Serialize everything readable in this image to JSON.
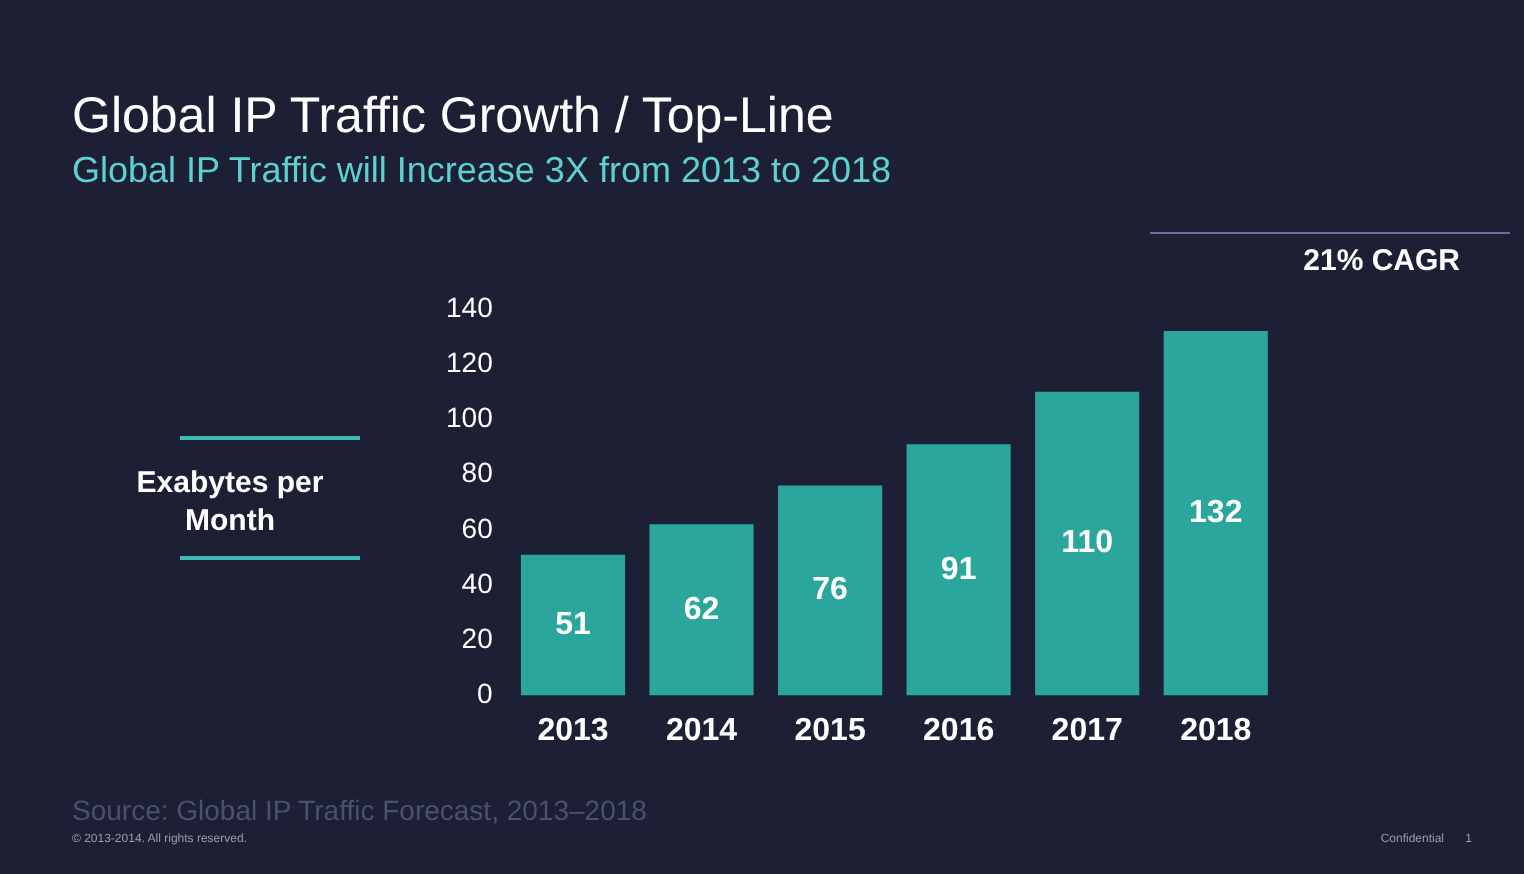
{
  "chart_data": {
    "type": "bar",
    "title": "Global IP Traffic Growth / Top-Line",
    "subtitle": "Global IP Traffic will Increase 3X from 2013 to 2018",
    "ylabel": "Exabytes per Month",
    "categories": [
      "2013",
      "2014",
      "2015",
      "2016",
      "2017",
      "2018"
    ],
    "values": [
      51,
      62,
      76,
      91,
      110,
      132
    ],
    "color": "#2aa69c",
    "ylim": [
      0,
      140
    ],
    "yticks": [
      0,
      20,
      40,
      60,
      80,
      100,
      120,
      140
    ],
    "grid": false,
    "data_labels": true,
    "annotations": [
      "21% CAGR",
      "Source: Global IP Traffic Forecast, 2013–2018",
      "© 2013-2014. All rights reserved.",
      "Confidential",
      "1"
    ]
  }
}
